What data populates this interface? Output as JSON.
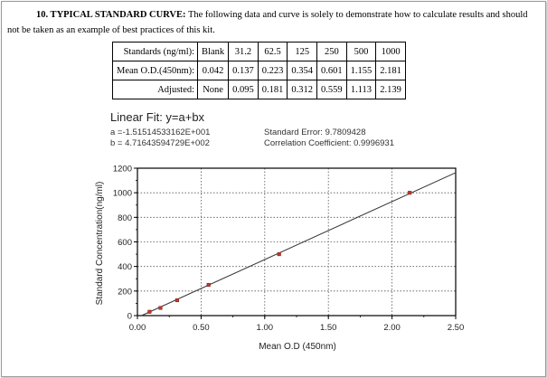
{
  "doc": {
    "section_heading": "10. TYPICAL STANDARD CURVE:",
    "section_text": " The following data and curve is solely to demonstrate how to calculate results and should not be taken as an example of best practices of this kit."
  },
  "table": {
    "rows": [
      {
        "label": "Standards (ng/ml):",
        "values": [
          "Blank",
          "31.2",
          "62.5",
          "125",
          "250",
          "500",
          "1000"
        ]
      },
      {
        "label": "Mean O.D.(450nm):",
        "values": [
          "0.042",
          "0.137",
          "0.223",
          "0.354",
          "0.601",
          "1.155",
          "2.181"
        ]
      },
      {
        "label": "Adjusted:",
        "values": [
          "None",
          "0.095",
          "0.181",
          "0.312",
          "0.559",
          "1.113",
          "2.139"
        ]
      }
    ]
  },
  "fit": {
    "title": "Linear Fit: y=a+bx",
    "a": "a =-1.51514533162E+001",
    "b": "b = 4.71643594729E+002",
    "std_error": "Standard Error: 9.7809428",
    "corr": "Correlation Coefficient: 0.9996931"
  },
  "chart_data": {
    "type": "scatter",
    "xlabel": "Mean O.D (450nm)",
    "ylabel": "Standard Concentration(ng/ml)",
    "xlim": [
      0,
      2.5
    ],
    "ylim": [
      0,
      1200
    ],
    "xticks": [
      "0.00",
      "0.50",
      "1.00",
      "1.50",
      "2.00",
      "2.50"
    ],
    "yticks": [
      "0",
      "200",
      "400",
      "600",
      "800",
      "1000",
      "1200"
    ],
    "grid": true,
    "points": [
      {
        "x": 0.095,
        "y": 31.2
      },
      {
        "x": 0.181,
        "y": 62.5
      },
      {
        "x": 0.312,
        "y": 125
      },
      {
        "x": 0.559,
        "y": 250
      },
      {
        "x": 1.113,
        "y": 500
      },
      {
        "x": 2.139,
        "y": 1000
      }
    ],
    "fit_line": {
      "a": -15.1514533162,
      "b": 471.643594729
    }
  }
}
